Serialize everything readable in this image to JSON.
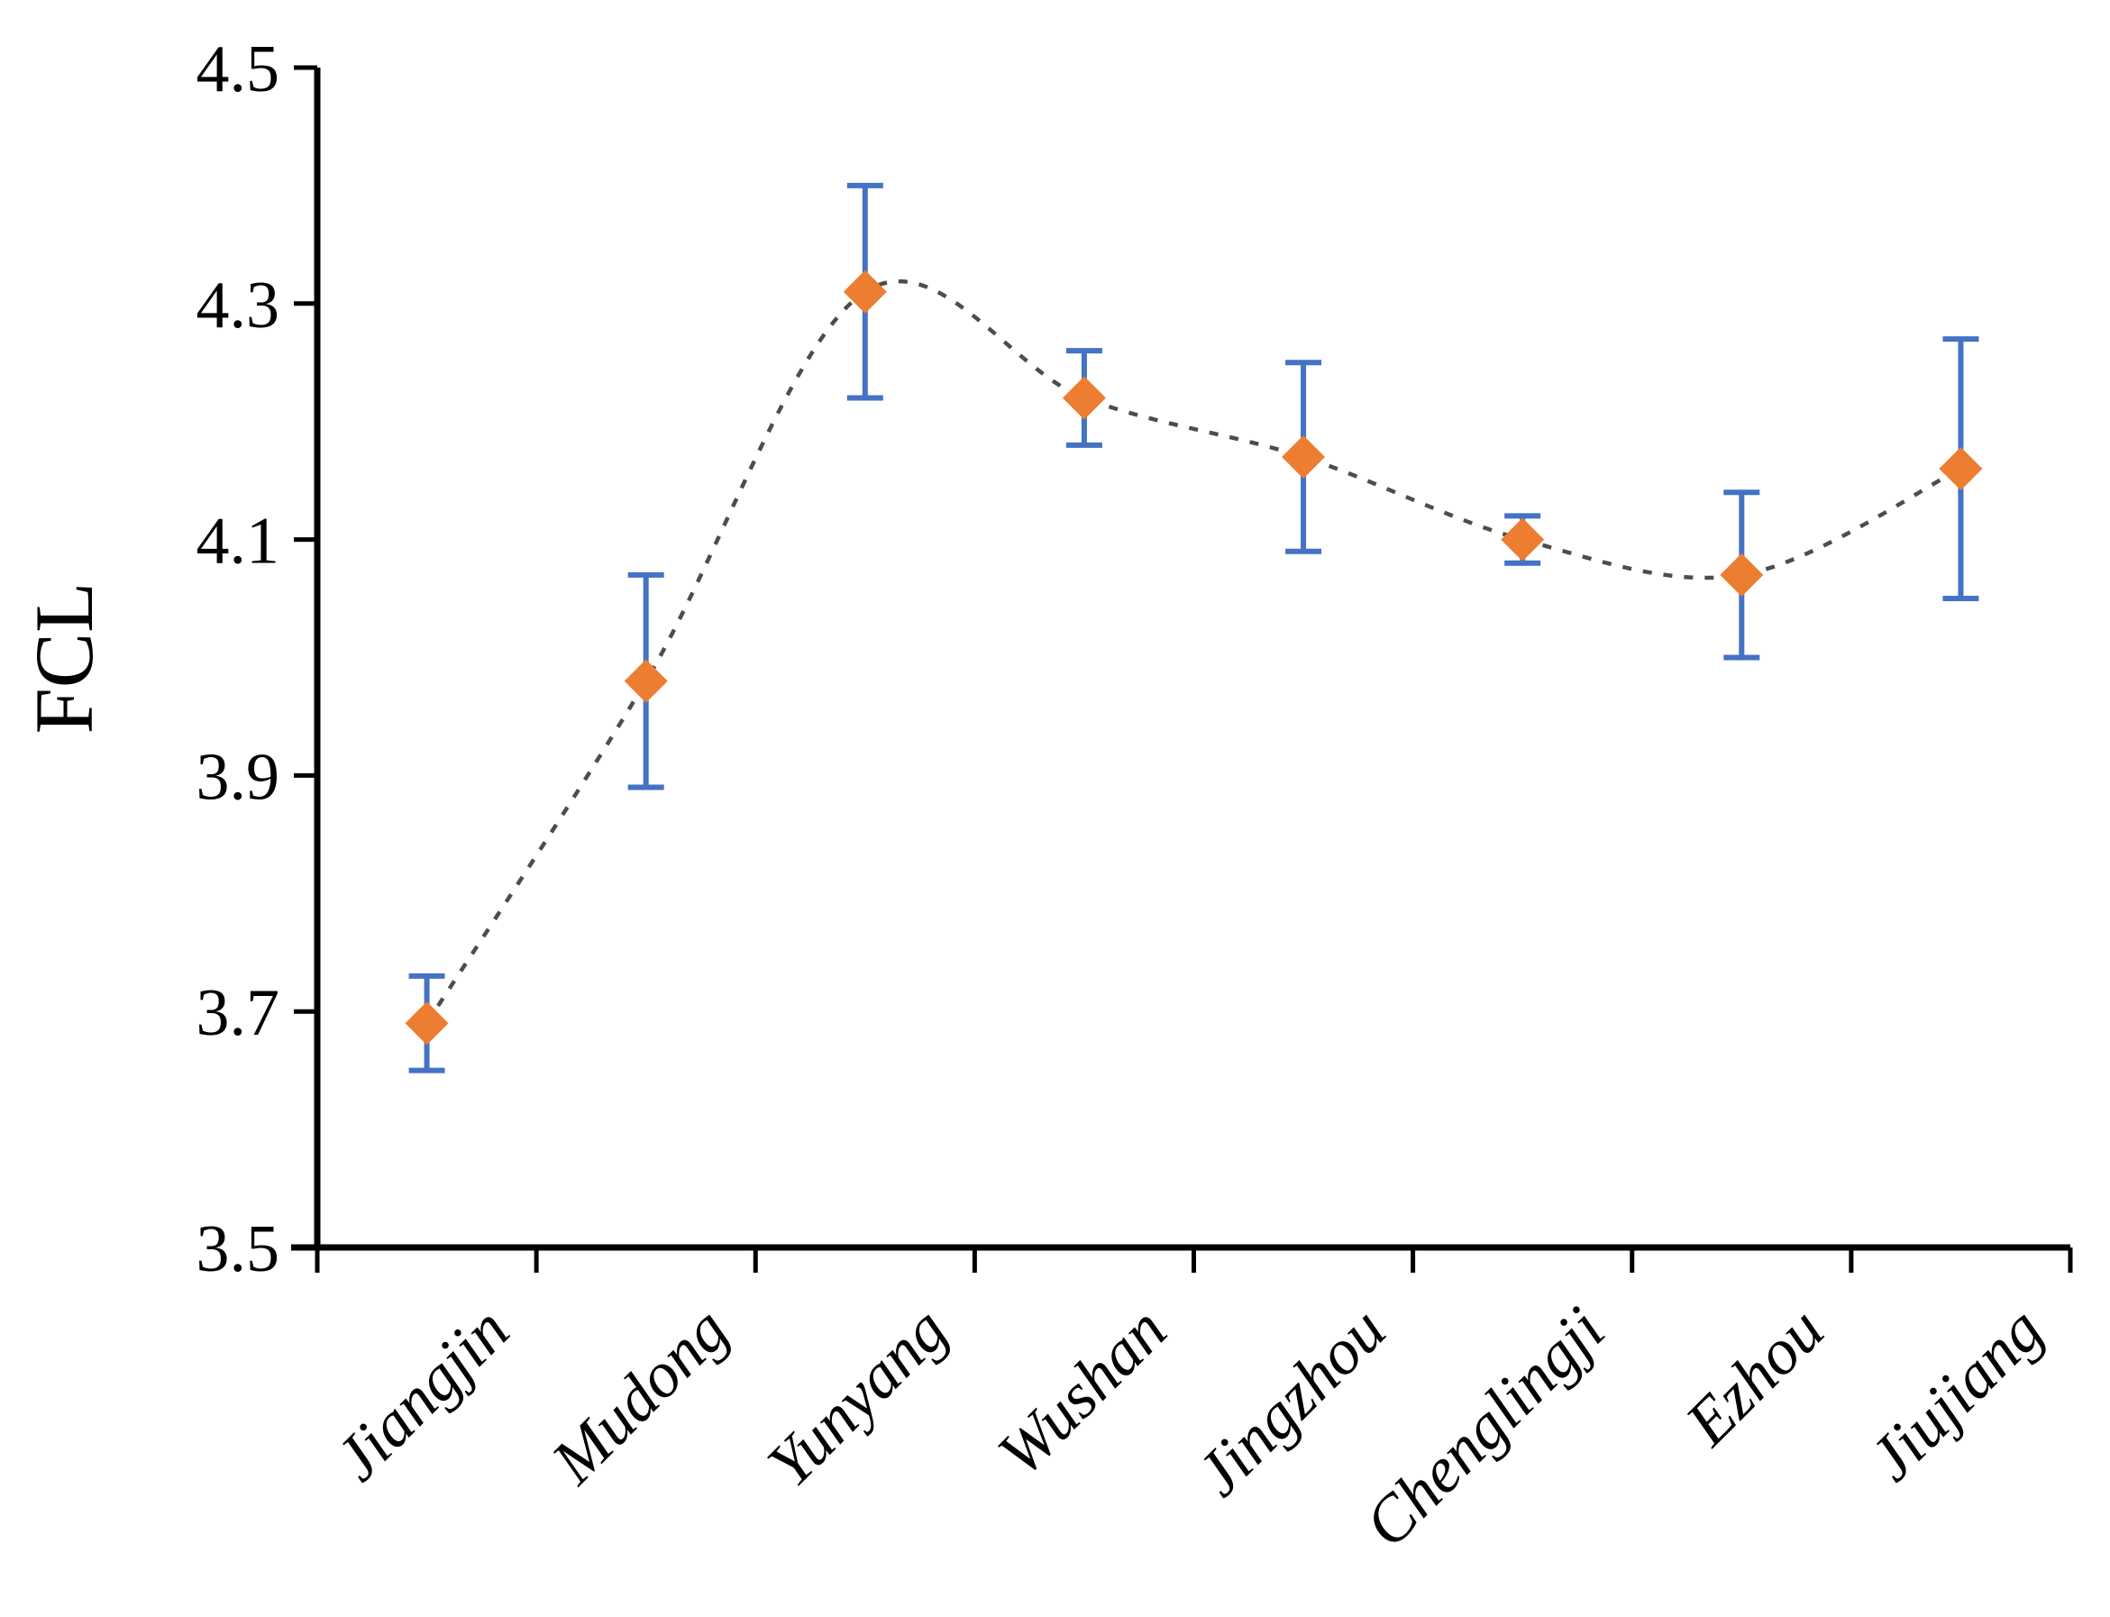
{
  "page": {
    "background": "#ffffff"
  },
  "chart_data": {
    "type": "line",
    "subtype": "smooth-dashed-line-with-markers-and-error-bars",
    "title": "",
    "xlabel": "",
    "ylabel": "FCL",
    "categories": [
      "Jiangjin",
      "Mudong",
      "Yunyang",
      "Wushan",
      "Jingzhou",
      "Chenglingji",
      "Ezhou",
      "Jiujiang"
    ],
    "series": [
      {
        "name": "FCL",
        "values": [
          3.69,
          3.98,
          4.31,
          4.22,
          4.17,
          4.1,
          4.07,
          4.16
        ],
        "error_upper": [
          0.04,
          0.09,
          0.09,
          0.04,
          0.08,
          0.02,
          0.07,
          0.11
        ],
        "error_lower": [
          0.04,
          0.09,
          0.09,
          0.04,
          0.08,
          0.02,
          0.07,
          0.11
        ]
      }
    ],
    "ylim": [
      3.5,
      4.5
    ],
    "yticks": [
      3.5,
      3.7,
      3.9,
      4.1,
      4.3,
      4.5
    ],
    "ytick_labels": [
      "3.5",
      "3.7",
      "3.9",
      "4.1",
      "4.3",
      "4.5"
    ],
    "x_label_rotation_deg": 45,
    "grid": false,
    "legend": false,
    "marker_shape": "diamond",
    "line_style": "dashed",
    "line_smooth": true,
    "colors": {
      "marker": "#ED7D31",
      "error_bar": "#4472C4",
      "line": "#4d4d4d",
      "axis": "#000000",
      "text": "#000000"
    }
  }
}
